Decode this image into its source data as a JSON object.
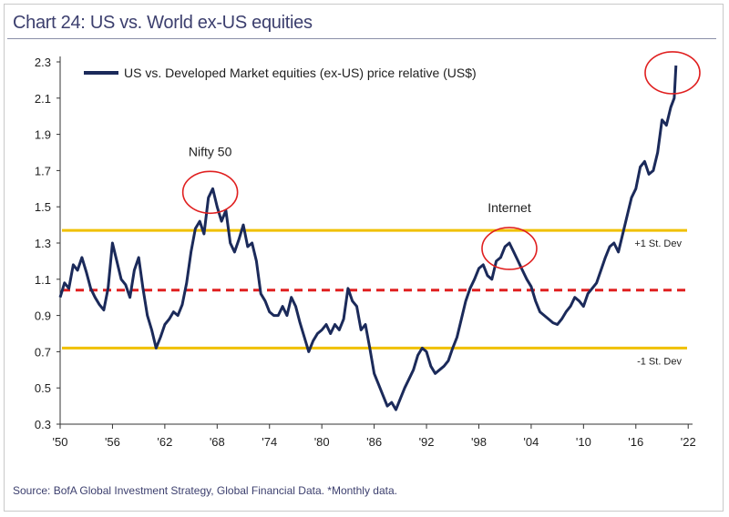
{
  "chart_data": {
    "type": "line",
    "title": "Chart 24: US vs. World ex-US equities",
    "source": "Source: BofA Global Investment Strategy, Global Financial Data. *Monthly data.",
    "xlabel": "",
    "ylabel": "",
    "xlim": [
      1950,
      2022.5
    ],
    "ylim": [
      0.3,
      2.3
    ],
    "x_tick_labels": [
      "'50",
      "'56",
      "'62",
      "'68",
      "'74",
      "'80",
      "'86",
      "'92",
      "'98",
      "'04",
      "'10",
      "'16",
      "'22"
    ],
    "x_tick_values": [
      1950,
      1956,
      1962,
      1968,
      1974,
      1980,
      1986,
      1992,
      1998,
      2004,
      2010,
      2016,
      2022
    ],
    "y_tick_labels": [
      "0.3",
      "0.5",
      "0.7",
      "0.9",
      "1.1",
      "1.3",
      "1.5",
      "1.7",
      "1.9",
      "2.1",
      "2.3"
    ],
    "y_tick_values": [
      0.3,
      0.5,
      0.7,
      0.9,
      1.1,
      1.3,
      1.5,
      1.7,
      1.9,
      2.1,
      2.3
    ],
    "grid": false,
    "legend_position": "top-left",
    "series": [
      {
        "name": "US vs. Developed Market equities (ex-US) price relative (US$)",
        "color": "#1b2a5a",
        "x": [
          1950.0,
          1950.5,
          1951.0,
          1951.5,
          1952.0,
          1952.5,
          1953.0,
          1953.5,
          1954.0,
          1954.5,
          1955.0,
          1955.5,
          1956.0,
          1956.5,
          1957.0,
          1957.5,
          1958.0,
          1958.5,
          1959.0,
          1959.5,
          1960.0,
          1960.5,
          1961.0,
          1961.5,
          1962.0,
          1962.5,
          1963.0,
          1963.5,
          1964.0,
          1964.5,
          1965.0,
          1965.5,
          1966.0,
          1966.5,
          1967.0,
          1967.5,
          1968.0,
          1968.5,
          1969.0,
          1969.5,
          1970.0,
          1970.5,
          1971.0,
          1971.5,
          1972.0,
          1972.5,
          1973.0,
          1973.5,
          1974.0,
          1974.5,
          1975.0,
          1975.5,
          1976.0,
          1976.5,
          1977.0,
          1977.5,
          1978.0,
          1978.5,
          1979.0,
          1979.5,
          1980.0,
          1980.5,
          1981.0,
          1981.5,
          1982.0,
          1982.5,
          1983.0,
          1983.5,
          1984.0,
          1984.5,
          1985.0,
          1985.5,
          1986.0,
          1986.5,
          1987.0,
          1987.5,
          1988.0,
          1988.5,
          1989.0,
          1989.5,
          1990.0,
          1990.5,
          1991.0,
          1991.5,
          1992.0,
          1992.5,
          1993.0,
          1993.5,
          1994.0,
          1994.5,
          1995.0,
          1995.5,
          1996.0,
          1996.5,
          1997.0,
          1997.5,
          1998.0,
          1998.5,
          1999.0,
          1999.5,
          2000.0,
          2000.5,
          2001.0,
          2001.5,
          2002.0,
          2002.5,
          2003.0,
          2003.5,
          2004.0,
          2004.5,
          2005.0,
          2005.5,
          2006.0,
          2006.5,
          2007.0,
          2007.5,
          2008.0,
          2008.5,
          2009.0,
          2009.5,
          2010.0,
          2010.5,
          2011.0,
          2011.5,
          2012.0,
          2012.5,
          2013.0,
          2013.5,
          2014.0,
          2014.5,
          2015.0,
          2015.5,
          2016.0,
          2016.5,
          2017.0,
          2017.5,
          2018.0,
          2018.5,
          2019.0,
          2019.5,
          2020.0,
          2020.4,
          2020.6
        ],
        "y": [
          1.0,
          1.08,
          1.05,
          1.18,
          1.15,
          1.22,
          1.14,
          1.05,
          1.0,
          0.96,
          0.93,
          1.05,
          1.3,
          1.2,
          1.1,
          1.07,
          1.0,
          1.15,
          1.22,
          1.05,
          0.9,
          0.82,
          0.72,
          0.78,
          0.85,
          0.88,
          0.92,
          0.9,
          0.96,
          1.08,
          1.25,
          1.38,
          1.42,
          1.35,
          1.55,
          1.6,
          1.5,
          1.42,
          1.48,
          1.3,
          1.25,
          1.32,
          1.4,
          1.28,
          1.3,
          1.2,
          1.02,
          0.98,
          0.92,
          0.9,
          0.9,
          0.95,
          0.9,
          1.0,
          0.95,
          0.86,
          0.78,
          0.7,
          0.76,
          0.8,
          0.82,
          0.85,
          0.8,
          0.85,
          0.82,
          0.88,
          1.05,
          0.98,
          0.95,
          0.82,
          0.85,
          0.72,
          0.58,
          0.52,
          0.46,
          0.4,
          0.42,
          0.38,
          0.44,
          0.5,
          0.55,
          0.6,
          0.68,
          0.72,
          0.7,
          0.62,
          0.58,
          0.6,
          0.62,
          0.65,
          0.72,
          0.78,
          0.88,
          0.98,
          1.05,
          1.1,
          1.16,
          1.18,
          1.12,
          1.1,
          1.2,
          1.22,
          1.28,
          1.3,
          1.25,
          1.2,
          1.15,
          1.1,
          1.06,
          0.98,
          0.92,
          0.9,
          0.88,
          0.86,
          0.85,
          0.88,
          0.92,
          0.95,
          1.0,
          0.98,
          0.95,
          1.02,
          1.05,
          1.08,
          1.15,
          1.22,
          1.28,
          1.3,
          1.25,
          1.35,
          1.45,
          1.55,
          1.6,
          1.72,
          1.75,
          1.68,
          1.7,
          1.8,
          1.98,
          1.95,
          2.05,
          2.1,
          2.28
        ]
      }
    ],
    "reference_lines": [
      {
        "y": 1.37,
        "style": "solid",
        "color": "#f0c000",
        "label": "+1 St. Dev"
      },
      {
        "y": 1.04,
        "style": "dashed",
        "color": "#e02020",
        "label": ""
      },
      {
        "y": 0.72,
        "style": "solid",
        "color": "#f0c000",
        "label": "-1 St. Dev"
      }
    ],
    "annotations": [
      {
        "text": "Nifty 50",
        "x": 1967.2,
        "y": 1.58
      },
      {
        "text": "Internet",
        "x": 2001.5,
        "y": 1.27
      },
      {
        "text": "",
        "x": 2020.2,
        "y": 2.24
      }
    ]
  }
}
